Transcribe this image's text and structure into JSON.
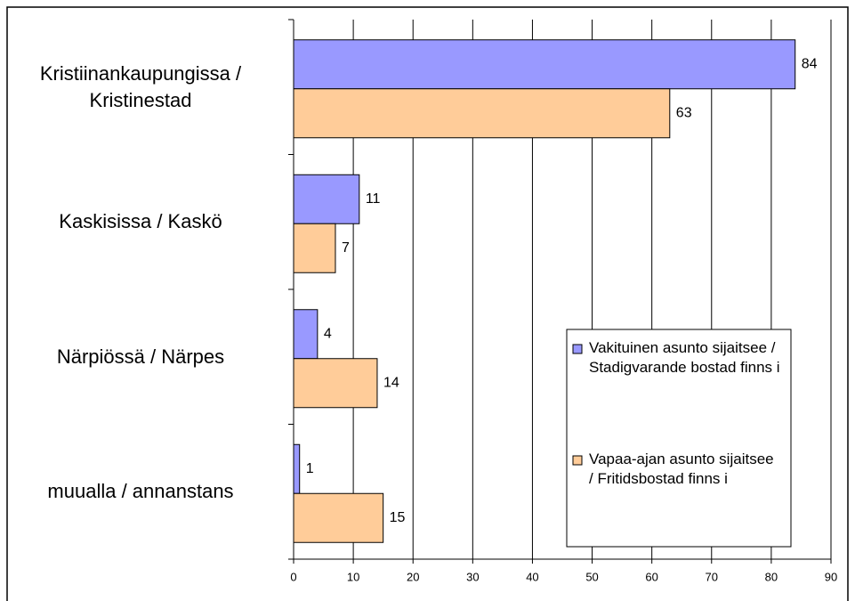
{
  "chart_data": {
    "type": "bar",
    "orientation": "horizontal",
    "categories": [
      "Kristiinankaupungissa / Kristinestad",
      "Kaskisissa / Kaskö",
      "Närpiössä / Närpes",
      "muualla / annanstans"
    ],
    "series": [
      {
        "name": "Vakituinen asunto sijaitsee / Stadigvarande bostad finns i",
        "color": "#9999ff",
        "values": [
          84,
          11,
          4,
          1
        ]
      },
      {
        "name": "Vapaa-ajan asunto sijaitsee / Fritidsbostad finns i",
        "color": "#ffcc99",
        "values": [
          63,
          7,
          14,
          15
        ]
      }
    ],
    "xlim": [
      0,
      90
    ],
    "xticks": [
      0,
      10,
      20,
      30,
      40,
      50,
      60,
      70,
      80,
      90
    ],
    "grid": true,
    "legend": "lower right"
  }
}
